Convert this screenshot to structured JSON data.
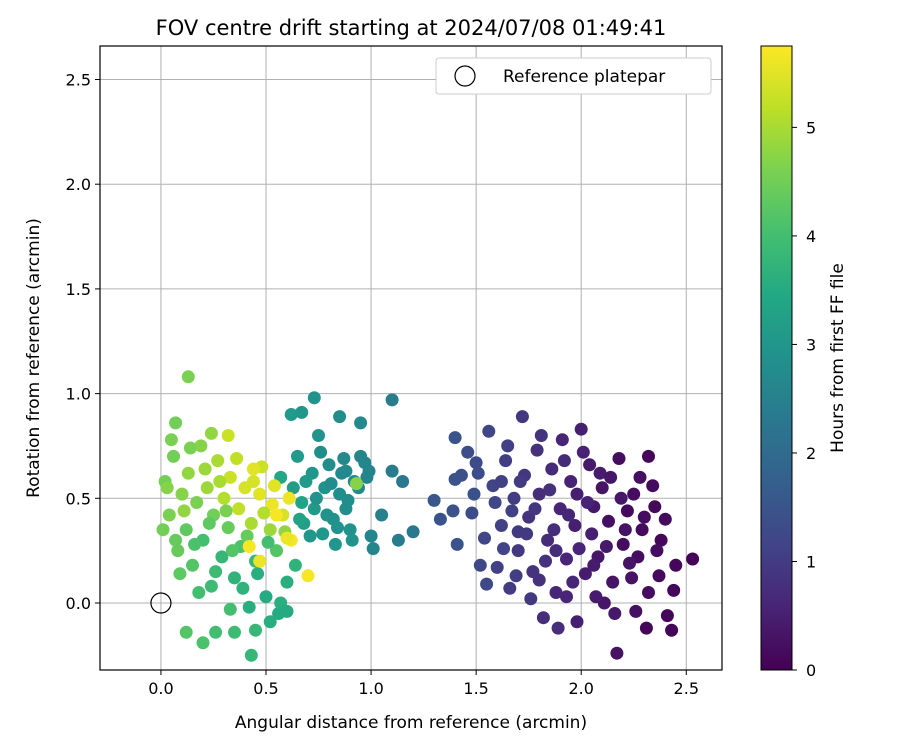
{
  "chart_data": {
    "type": "scatter",
    "title": "FOV centre drift starting at 2024/07/08 01:49:41",
    "xlabel": "Angular distance from reference (arcmin)",
    "ylabel": "Rotation from reference (arcmin)",
    "xlim": [
      -0.29,
      2.67
    ],
    "ylim": [
      -0.32,
      2.66
    ],
    "x_ticks": [
      0.0,
      0.5,
      1.0,
      1.5,
      2.0,
      2.5
    ],
    "x_tick_labels": [
      "0.0",
      "0.5",
      "1.0",
      "1.5",
      "2.0",
      "2.5"
    ],
    "y_ticks": [
      0.0,
      0.5,
      1.0,
      1.5,
      2.0,
      2.5
    ],
    "y_tick_labels": [
      "0.0",
      "0.5",
      "1.0",
      "1.5",
      "2.0",
      "2.5"
    ],
    "grid": true,
    "legend": {
      "position": "top-right",
      "entries": [
        "Reference platepar"
      ]
    },
    "reference_point": {
      "x": 0.0,
      "y": 0.0,
      "label": "Reference platepar"
    },
    "colorbar": {
      "label": "Hours from first FF file",
      "colormap": "viridis",
      "range": [
        0,
        5.75
      ],
      "ticks": [
        0,
        1,
        2,
        3,
        4,
        5
      ],
      "tick_labels": [
        "0",
        "1",
        "2",
        "3",
        "4",
        "5"
      ]
    },
    "points": [
      [
        2.53,
        0.21,
        0.05
      ],
      [
        2.43,
        -0.13,
        0.05
      ],
      [
        2.41,
        -0.06,
        0.1
      ],
      [
        2.44,
        0.06,
        0.1
      ],
      [
        2.38,
        0.3,
        0.1
      ],
      [
        2.35,
        0.46,
        0.1
      ],
      [
        2.34,
        0.56,
        0.15
      ],
      [
        2.32,
        0.7,
        0.1
      ],
      [
        2.31,
        -0.12,
        0.1
      ],
      [
        2.29,
        0.35,
        0.15
      ],
      [
        2.27,
        0.22,
        0.2
      ],
      [
        2.25,
        0.52,
        0.2
      ],
      [
        2.22,
        0.44,
        0.15
      ],
      [
        2.2,
        0.28,
        0.2
      ],
      [
        2.18,
        0.69,
        0.2
      ],
      [
        2.17,
        -0.24,
        0.3
      ],
      [
        2.15,
        0.1,
        0.3
      ],
      [
        2.13,
        0.39,
        0.25
      ],
      [
        2.11,
        0.0,
        0.35
      ],
      [
        2.1,
        0.55,
        0.3
      ],
      [
        2.08,
        0.22,
        0.35
      ],
      [
        2.06,
        0.46,
        0.4
      ],
      [
        2.04,
        0.66,
        0.4
      ],
      [
        2.02,
        0.14,
        0.45
      ],
      [
        2.0,
        0.83,
        0.5
      ],
      [
        1.98,
        -0.09,
        0.5
      ],
      [
        1.97,
        0.37,
        0.5
      ],
      [
        1.95,
        0.58,
        0.55
      ],
      [
        1.93,
        0.21,
        0.6
      ],
      [
        1.91,
        0.78,
        0.6
      ],
      [
        1.9,
        0.45,
        0.6
      ],
      [
        1.88,
        0.05,
        0.65
      ],
      [
        1.86,
        0.64,
        0.7
      ],
      [
        1.84,
        0.3,
        0.7
      ],
      [
        1.82,
        -0.07,
        0.75
      ],
      [
        1.8,
        0.52,
        0.75
      ],
      [
        1.79,
        0.73,
        0.8
      ],
      [
        1.77,
        0.15,
        0.85
      ],
      [
        1.75,
        0.41,
        0.85
      ],
      [
        1.73,
        0.61,
        0.9
      ],
      [
        1.72,
        0.89,
        0.9
      ],
      [
        1.7,
        0.25,
        0.95
      ],
      [
        1.68,
        0.5,
        1.0
      ],
      [
        1.66,
        0.07,
        1.0
      ],
      [
        1.64,
        0.68,
        1.05
      ],
      [
        1.62,
        0.37,
        1.1
      ],
      [
        1.6,
        0.17,
        1.1
      ],
      [
        1.58,
        0.56,
        1.15
      ],
      [
        1.56,
        0.82,
        1.2
      ],
      [
        1.54,
        0.31,
        1.2
      ],
      [
        1.52,
        0.18,
        1.25
      ],
      [
        1.5,
        0.67,
        1.3
      ],
      [
        1.48,
        0.43,
        1.3
      ],
      [
        2.45,
        0.18,
        0.1
      ],
      [
        2.4,
        0.4,
        0.15
      ],
      [
        2.36,
        0.25,
        0.2
      ],
      [
        2.32,
        0.05,
        0.2
      ],
      [
        2.28,
        0.6,
        0.25
      ],
      [
        2.24,
        0.12,
        0.3
      ],
      [
        2.21,
        0.35,
        0.3
      ],
      [
        2.19,
        0.5,
        0.35
      ],
      [
        2.16,
        -0.05,
        0.4
      ],
      [
        2.12,
        0.27,
        0.4
      ],
      [
        2.09,
        0.62,
        0.45
      ],
      [
        2.07,
        0.03,
        0.45
      ],
      [
        2.05,
        0.33,
        0.5
      ],
      [
        2.03,
        0.48,
        0.55
      ],
      [
        2.01,
        0.72,
        0.55
      ],
      [
        1.99,
        0.26,
        0.6
      ],
      [
        1.96,
        0.1,
        0.65
      ],
      [
        1.94,
        0.42,
        0.65
      ],
      [
        1.92,
        0.68,
        0.7
      ],
      [
        1.89,
        -0.12,
        0.75
      ],
      [
        1.87,
        0.35,
        0.75
      ],
      [
        1.85,
        0.54,
        0.8
      ],
      [
        1.83,
        0.2,
        0.85
      ],
      [
        1.81,
        0.8,
        0.85
      ],
      [
        1.78,
        0.45,
        0.9
      ],
      [
        1.76,
        0.02,
        0.95
      ],
      [
        1.74,
        0.33,
        0.95
      ],
      [
        1.71,
        0.58,
        1.0
      ],
      [
        1.69,
        0.13,
        1.05
      ],
      [
        1.67,
        0.44,
        1.1
      ],
      [
        1.65,
        0.75,
        1.1
      ],
      [
        1.63,
        0.26,
        1.15
      ],
      [
        1.59,
        0.48,
        1.2
      ],
      [
        1.55,
        0.09,
        1.25
      ],
      [
        1.51,
        0.62,
        1.35
      ],
      [
        1.46,
        0.72,
        1.35
      ],
      [
        1.43,
        0.61,
        1.4
      ],
      [
        1.39,
        0.44,
        1.45
      ],
      [
        1.3,
        0.49,
        1.55
      ],
      [
        1.4,
        0.79,
        1.5
      ],
      [
        1.33,
        0.4,
        1.5
      ],
      [
        2.37,
        0.13,
        0.15
      ],
      [
        2.3,
        0.41,
        0.2
      ],
      [
        2.26,
        -0.04,
        0.25
      ],
      [
        2.23,
        0.19,
        0.3
      ],
      [
        2.14,
        0.6,
        0.35
      ],
      [
        2.06,
        0.18,
        0.45
      ],
      [
        1.98,
        0.52,
        0.5
      ],
      [
        1.93,
        0.03,
        0.6
      ],
      [
        1.88,
        0.25,
        0.7
      ],
      [
        1.8,
        0.11,
        0.8
      ],
      [
        1.7,
        0.34,
        0.95
      ],
      [
        1.62,
        0.58,
        1.1
      ],
      [
        0.02,
        0.58,
        4.5
      ],
      [
        0.04,
        0.42,
        4.6
      ],
      [
        0.06,
        0.7,
        4.5
      ],
      [
        0.08,
        0.25,
        4.4
      ],
      [
        0.1,
        0.52,
        4.7
      ],
      [
        0.12,
        0.35,
        4.3
      ],
      [
        0.13,
        0.62,
        4.8
      ],
      [
        0.15,
        0.18,
        4.2
      ],
      [
        0.17,
        0.48,
        4.6
      ],
      [
        0.19,
        0.75,
        4.7
      ],
      [
        0.2,
        0.3,
        4.0
      ],
      [
        0.22,
        0.55,
        4.9
      ],
      [
        0.24,
        0.08,
        3.9
      ],
      [
        0.25,
        0.42,
        4.5
      ],
      [
        0.27,
        0.68,
        5.0
      ],
      [
        0.29,
        0.22,
        3.8
      ],
      [
        0.3,
        0.5,
        5.1
      ],
      [
        0.32,
        0.36,
        4.4
      ],
      [
        0.33,
        0.6,
        5.3
      ],
      [
        0.35,
        0.12,
        3.7
      ],
      [
        0.37,
        0.45,
        5.2
      ],
      [
        0.38,
        0.27,
        4.1
      ],
      [
        0.4,
        0.55,
        5.4
      ],
      [
        0.42,
        -0.02,
        3.6
      ],
      [
        0.43,
        0.38,
        5.0
      ],
      [
        0.45,
        0.2,
        3.8
      ],
      [
        0.47,
        0.52,
        5.5
      ],
      [
        0.48,
        0.65,
        5.3
      ],
      [
        0.5,
        0.03,
        3.5
      ],
      [
        0.52,
        0.35,
        4.9
      ],
      [
        0.53,
        0.47,
        5.6
      ],
      [
        0.55,
        0.25,
        4.2
      ],
      [
        0.57,
        0.6,
        3.4
      ],
      [
        0.58,
        0.42,
        5.4
      ],
      [
        0.6,
        0.1,
        3.6
      ],
      [
        0.62,
        0.3,
        5.7
      ],
      [
        0.63,
        0.55,
        3.2
      ],
      [
        0.65,
        0.7,
        3.1
      ],
      [
        0.67,
        0.48,
        3.3
      ],
      [
        0.68,
        0.38,
        3.2
      ],
      [
        0.7,
        0.13,
        5.7
      ],
      [
        0.72,
        0.62,
        3.0
      ],
      [
        0.73,
        0.45,
        3.1
      ],
      [
        0.75,
        0.8,
        2.9
      ],
      [
        0.77,
        0.33,
        3.0
      ],
      [
        0.78,
        0.55,
        2.9
      ],
      [
        0.8,
        0.66,
        2.8
      ],
      [
        0.82,
        0.4,
        2.9
      ],
      [
        0.83,
        0.28,
        3.0
      ],
      [
        0.85,
        0.52,
        2.8
      ],
      [
        0.87,
        0.69,
        2.7
      ],
      [
        0.88,
        0.45,
        2.8
      ],
      [
        0.9,
        0.35,
        2.9
      ],
      [
        0.92,
        0.58,
        2.7
      ],
      [
        0.95,
        0.7,
        2.6
      ],
      [
        0.98,
        0.6,
        2.6
      ],
      [
        0.01,
        0.35,
        4.5
      ],
      [
        0.03,
        0.55,
        4.7
      ],
      [
        0.05,
        0.78,
        4.6
      ],
      [
        0.07,
        0.86,
        4.5
      ],
      [
        0.09,
        0.14,
        4.3
      ],
      [
        0.11,
        0.44,
        4.8
      ],
      [
        0.14,
        0.74,
        4.6
      ],
      [
        0.16,
        0.28,
        4.1
      ],
      [
        0.18,
        0.05,
        4.0
      ],
      [
        0.21,
        0.64,
        4.9
      ],
      [
        0.23,
        0.38,
        4.3
      ],
      [
        0.26,
        0.15,
        3.9
      ],
      [
        0.28,
        0.58,
        5.0
      ],
      [
        0.31,
        0.44,
        4.6
      ],
      [
        0.34,
        0.25,
        4.2
      ],
      [
        0.36,
        0.69,
        5.2
      ],
      [
        0.39,
        0.07,
        3.7
      ],
      [
        0.41,
        0.32,
        4.4
      ],
      [
        0.44,
        0.58,
        5.4
      ],
      [
        0.46,
        0.14,
        3.6
      ],
      [
        0.49,
        0.43,
        5.1
      ],
      [
        0.51,
        0.29,
        4.0
      ],
      [
        0.54,
        0.56,
        5.5
      ],
      [
        0.56,
        -0.05,
        3.5
      ],
      [
        0.59,
        0.34,
        4.8
      ],
      [
        0.61,
        0.5,
        5.6
      ],
      [
        0.64,
        0.18,
        3.7
      ],
      [
        0.66,
        0.4,
        3.3
      ],
      [
        0.69,
        0.58,
        3.1
      ],
      [
        0.71,
        0.32,
        3.0
      ],
      [
        0.74,
        0.5,
        2.9
      ],
      [
        0.76,
        0.72,
        2.8
      ],
      [
        0.79,
        0.42,
        2.9
      ],
      [
        0.81,
        0.57,
        2.8
      ],
      [
        0.84,
        0.36,
        2.9
      ],
      [
        0.86,
        0.62,
        2.7
      ],
      [
        0.89,
        0.49,
        2.8
      ],
      [
        0.91,
        0.3,
        2.9
      ],
      [
        0.94,
        0.55,
        2.7
      ],
      [
        0.97,
        0.67,
        2.6
      ],
      [
        0.13,
        1.08,
        4.6
      ],
      [
        0.07,
        0.3,
        4.4
      ],
      [
        0.12,
        -0.14,
        4.2
      ],
      [
        0.2,
        -0.19,
        4.1
      ],
      [
        0.26,
        -0.14,
        4.0
      ],
      [
        0.33,
        -0.03,
        4.0
      ],
      [
        0.35,
        -0.14,
        3.9
      ],
      [
        0.43,
        -0.25,
        3.8
      ],
      [
        0.45,
        -0.13,
        3.8
      ],
      [
        0.52,
        -0.09,
        3.6
      ],
      [
        0.57,
        0.0,
        3.6
      ],
      [
        0.6,
        -0.04,
        3.5
      ],
      [
        0.24,
        0.81,
        4.8
      ],
      [
        0.32,
        0.8,
        5.3
      ],
      [
        0.42,
        0.27,
        5.7
      ],
      [
        0.44,
        0.64,
        5.5
      ],
      [
        0.47,
        0.2,
        5.6
      ],
      [
        0.55,
        0.42,
        5.7
      ],
      [
        0.6,
        0.31,
        5.6
      ],
      [
        0.62,
        0.9,
        3.1
      ],
      [
        0.67,
        0.91,
        3.0
      ],
      [
        0.73,
        0.98,
        2.9
      ],
      [
        0.85,
        0.89,
        2.8
      ],
      [
        0.93,
        0.57,
        4.7
      ],
      [
        0.95,
        0.86,
        2.7
      ],
      [
        1.1,
        0.97,
        2.4
      ],
      [
        1.0,
        0.32,
        2.6
      ],
      [
        1.05,
        0.42,
        2.5
      ],
      [
        1.1,
        0.63,
        2.4
      ],
      [
        1.15,
        0.58,
        2.3
      ],
      [
        1.2,
        0.34,
        2.3
      ],
      [
        1.13,
        0.3,
        2.4
      ],
      [
        1.01,
        0.26,
        2.6
      ],
      [
        0.99,
        0.63,
        2.6
      ],
      [
        0.88,
        0.63,
        2.7
      ],
      [
        1.4,
        0.59,
        1.5
      ],
      [
        1.49,
        0.52,
        1.4
      ],
      [
        1.41,
        0.28,
        1.5
      ]
    ]
  }
}
